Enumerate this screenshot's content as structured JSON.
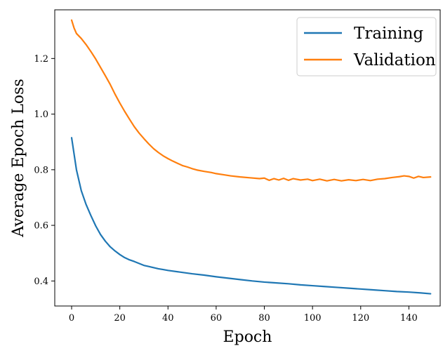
{
  "chart_data": {
    "type": "line",
    "title": "",
    "xlabel": "Epoch",
    "ylabel": "Average Epoch Loss",
    "xlim": [
      -7,
      153
    ],
    "ylim": [
      0.31,
      1.375
    ],
    "xticks": [
      0,
      20,
      40,
      60,
      80,
      100,
      120,
      140
    ],
    "yticks": [
      0.4,
      0.6,
      0.8,
      1.0,
      1.2
    ],
    "ytick_labels": [
      "0.4",
      "0.6",
      "0.8",
      "1.0",
      "1.2"
    ],
    "grid": false,
    "legend_position": "top-right",
    "series": [
      {
        "name": "Training",
        "color": "#1f77b4",
        "points": [
          [
            0,
            0.915
          ],
          [
            2,
            0.8
          ],
          [
            4,
            0.725
          ],
          [
            6,
            0.675
          ],
          [
            8,
            0.635
          ],
          [
            10,
            0.598
          ],
          [
            12,
            0.567
          ],
          [
            14,
            0.543
          ],
          [
            16,
            0.523
          ],
          [
            18,
            0.508
          ],
          [
            20,
            0.495
          ],
          [
            22,
            0.484
          ],
          [
            24,
            0.476
          ],
          [
            26,
            0.47
          ],
          [
            28,
            0.463
          ],
          [
            30,
            0.456
          ],
          [
            32,
            0.452
          ],
          [
            34,
            0.448
          ],
          [
            36,
            0.444
          ],
          [
            38,
            0.441
          ],
          [
            40,
            0.438
          ],
          [
            45,
            0.432
          ],
          [
            50,
            0.426
          ],
          [
            55,
            0.421
          ],
          [
            60,
            0.415
          ],
          [
            65,
            0.41
          ],
          [
            70,
            0.405
          ],
          [
            75,
            0.4
          ],
          [
            80,
            0.396
          ],
          [
            85,
            0.393
          ],
          [
            90,
            0.39
          ],
          [
            95,
            0.386
          ],
          [
            100,
            0.383
          ],
          [
            105,
            0.38
          ],
          [
            110,
            0.377
          ],
          [
            115,
            0.374
          ],
          [
            120,
            0.371
          ],
          [
            125,
            0.368
          ],
          [
            130,
            0.365
          ],
          [
            135,
            0.362
          ],
          [
            140,
            0.36
          ],
          [
            145,
            0.357
          ],
          [
            149,
            0.354
          ]
        ]
      },
      {
        "name": "Validation",
        "color": "#ff7f0e",
        "points": [
          [
            0,
            1.338
          ],
          [
            1,
            1.31
          ],
          [
            2,
            1.29
          ],
          [
            4,
            1.272
          ],
          [
            6,
            1.25
          ],
          [
            8,
            1.225
          ],
          [
            10,
            1.198
          ],
          [
            12,
            1.168
          ],
          [
            14,
            1.138
          ],
          [
            16,
            1.107
          ],
          [
            18,
            1.072
          ],
          [
            20,
            1.04
          ],
          [
            22,
            1.01
          ],
          [
            24,
            0.982
          ],
          [
            26,
            0.955
          ],
          [
            28,
            0.932
          ],
          [
            30,
            0.912
          ],
          [
            32,
            0.893
          ],
          [
            34,
            0.876
          ],
          [
            36,
            0.862
          ],
          [
            38,
            0.85
          ],
          [
            40,
            0.84
          ],
          [
            42,
            0.831
          ],
          [
            44,
            0.823
          ],
          [
            46,
            0.815
          ],
          [
            48,
            0.81
          ],
          [
            50,
            0.804
          ],
          [
            52,
            0.799
          ],
          [
            55,
            0.794
          ],
          [
            58,
            0.79
          ],
          [
            60,
            0.786
          ],
          [
            63,
            0.782
          ],
          [
            66,
            0.778
          ],
          [
            70,
            0.774
          ],
          [
            74,
            0.771
          ],
          [
            78,
            0.768
          ],
          [
            80,
            0.77
          ],
          [
            82,
            0.762
          ],
          [
            84,
            0.768
          ],
          [
            86,
            0.763
          ],
          [
            88,
            0.769
          ],
          [
            90,
            0.762
          ],
          [
            92,
            0.768
          ],
          [
            95,
            0.763
          ],
          [
            98,
            0.766
          ],
          [
            100,
            0.761
          ],
          [
            103,
            0.766
          ],
          [
            106,
            0.76
          ],
          [
            109,
            0.765
          ],
          [
            112,
            0.76
          ],
          [
            115,
            0.764
          ],
          [
            118,
            0.761
          ],
          [
            121,
            0.765
          ],
          [
            124,
            0.761
          ],
          [
            127,
            0.766
          ],
          [
            130,
            0.768
          ],
          [
            133,
            0.772
          ],
          [
            136,
            0.775
          ],
          [
            138,
            0.778
          ],
          [
            140,
            0.776
          ],
          [
            142,
            0.77
          ],
          [
            144,
            0.776
          ],
          [
            146,
            0.772
          ],
          [
            149,
            0.774
          ]
        ]
      }
    ]
  }
}
